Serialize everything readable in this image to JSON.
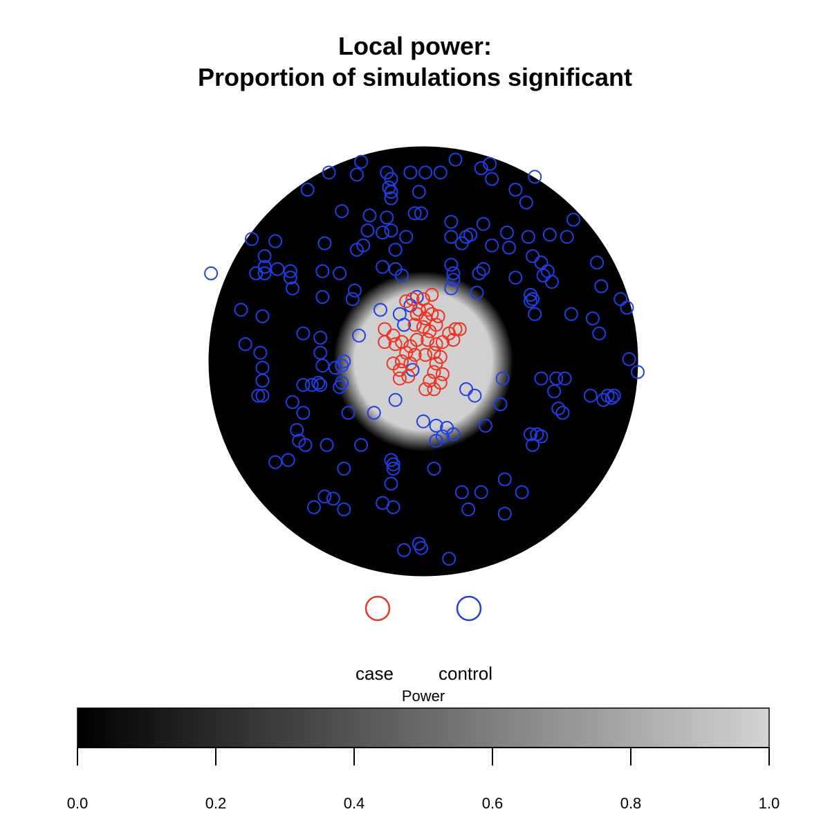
{
  "chart_data": {
    "type": "scatter",
    "title_line1": "Local power:",
    "title_line2": "Proportion of simulations significant",
    "grid": false,
    "background": {
      "description_units": "circular window, radius 1, centered at 0,0",
      "window_radius": 1.0,
      "power_inner_value": 0.85,
      "power_outer_value": 0.0,
      "power_transition_start": 0.32,
      "power_transition_end": 0.42
    },
    "legend": {
      "position": "below plot",
      "entries": [
        {
          "label": "case",
          "color": "#ee3322"
        },
        {
          "label": "control",
          "color": "#1f3fe6"
        }
      ]
    },
    "colorbar": {
      "title": "Power",
      "min": 0.0,
      "max": 1.0,
      "ticks": [
        "0.0",
        "0.2",
        "0.4",
        "0.6",
        "0.8",
        "1.0"
      ],
      "tick_values": [
        0.0,
        0.2,
        0.4,
        0.6,
        0.8,
        1.0
      ],
      "color_low": "#000000",
      "color_high": "#d3d3d3"
    },
    "series": [
      {
        "name": "case",
        "color": "#ee3322",
        "points": [
          [
            -0.08,
            0.28
          ],
          [
            -0.05,
            0.29
          ],
          [
            0.0,
            0.29
          ],
          [
            0.04,
            0.31
          ],
          [
            -0.02,
            0.24
          ],
          [
            0.02,
            0.24
          ],
          [
            -0.03,
            0.22
          ],
          [
            0.01,
            0.2
          ],
          [
            0.04,
            0.22
          ],
          [
            0.07,
            0.21
          ],
          [
            -0.04,
            0.17
          ],
          [
            0.0,
            0.16
          ],
          [
            0.03,
            0.14
          ],
          [
            0.06,
            0.17
          ],
          [
            -0.18,
            0.15
          ],
          [
            -0.14,
            0.12
          ],
          [
            -0.18,
            0.09
          ],
          [
            -0.13,
            0.08
          ],
          [
            -0.1,
            0.09
          ],
          [
            -0.06,
            0.07
          ],
          [
            -0.03,
            0.1
          ],
          [
            0.02,
            0.1
          ],
          [
            0.06,
            0.08
          ],
          [
            0.09,
            0.09
          ],
          [
            0.12,
            0.13
          ],
          [
            0.15,
            0.15
          ],
          [
            0.17,
            0.15
          ],
          [
            0.14,
            0.1
          ],
          [
            -0.08,
            0.04
          ],
          [
            -0.04,
            0.03
          ],
          [
            0.01,
            0.03
          ],
          [
            0.05,
            0.04
          ],
          [
            0.08,
            0.02
          ],
          [
            -0.06,
            -0.01
          ],
          [
            -0.1,
            0.0
          ],
          [
            -0.14,
            -0.01
          ],
          [
            -0.11,
            -0.04
          ],
          [
            0.06,
            -0.01
          ],
          [
            0.05,
            -0.05
          ],
          [
            0.09,
            -0.06
          ],
          [
            -0.11,
            -0.08
          ],
          [
            -0.07,
            -0.07
          ],
          [
            0.03,
            -0.09
          ],
          [
            0.08,
            -0.1
          ],
          [
            0.01,
            -0.13
          ],
          [
            0.05,
            -0.13
          ]
        ]
      },
      {
        "name": "control",
        "color": "#1f3fe6",
        "points": [
          [
            -0.29,
            0.93
          ],
          [
            0.15,
            0.94
          ],
          [
            -0.44,
            0.88
          ],
          [
            -0.31,
            0.87
          ],
          [
            -0.17,
            0.88
          ],
          [
            -0.15,
            0.85
          ],
          [
            -0.06,
            0.88
          ],
          [
            0.01,
            0.88
          ],
          [
            0.08,
            0.88
          ],
          [
            0.27,
            0.9
          ],
          [
            0.31,
            0.92
          ],
          [
            0.32,
            0.85
          ],
          [
            0.52,
            0.86
          ],
          [
            -0.54,
            0.8
          ],
          [
            -0.16,
            0.81
          ],
          [
            -0.15,
            0.79
          ],
          [
            -0.15,
            0.76
          ],
          [
            -0.02,
            0.79
          ],
          [
            0.43,
            0.8
          ],
          [
            0.48,
            0.74
          ],
          [
            -0.38,
            0.7
          ],
          [
            -0.25,
            0.68
          ],
          [
            -0.17,
            0.67
          ],
          [
            -0.04,
            0.69
          ],
          [
            -0.01,
            0.69
          ],
          [
            0.13,
            0.65
          ],
          [
            0.28,
            0.64
          ],
          [
            0.7,
            0.66
          ],
          [
            -0.26,
            0.61
          ],
          [
            -0.19,
            0.6
          ],
          [
            -0.15,
            0.61
          ],
          [
            -0.08,
            0.58
          ],
          [
            0.13,
            0.58
          ],
          [
            0.2,
            0.58
          ],
          [
            0.22,
            0.59
          ],
          [
            0.39,
            0.6
          ],
          [
            0.49,
            0.58
          ],
          [
            0.59,
            0.59
          ],
          [
            0.67,
            0.58
          ],
          [
            -0.8,
            0.57
          ],
          [
            -0.69,
            0.56
          ],
          [
            -0.46,
            0.55
          ],
          [
            -0.28,
            0.54
          ],
          [
            -0.31,
            0.52
          ],
          [
            0.18,
            0.55
          ],
          [
            0.32,
            0.54
          ],
          [
            -0.13,
            0.52
          ],
          [
            0.4,
            0.53
          ],
          [
            -0.74,
            0.49
          ],
          [
            0.51,
            0.49
          ],
          [
            0.55,
            0.46
          ],
          [
            -0.74,
            0.44
          ],
          [
            -0.68,
            0.43
          ],
          [
            0.81,
            0.46
          ],
          [
            -0.39,
            0.41
          ],
          [
            0.58,
            0.42
          ],
          [
            -0.99,
            0.41
          ],
          [
            -0.78,
            0.41
          ],
          [
            -0.74,
            0.41
          ],
          [
            -0.62,
            0.42
          ],
          [
            -0.47,
            0.42
          ],
          [
            -0.19,
            0.44
          ],
          [
            -0.13,
            0.43
          ],
          [
            -0.1,
            0.4
          ],
          [
            0.13,
            0.45
          ],
          [
            0.26,
            0.41
          ],
          [
            0.28,
            0.43
          ],
          [
            0.43,
            0.39
          ],
          [
            0.56,
            0.4
          ],
          [
            0.6,
            0.37
          ],
          [
            0.14,
            0.41
          ],
          [
            0.14,
            0.38
          ],
          [
            -0.62,
            0.39
          ],
          [
            -0.61,
            0.34
          ],
          [
            -0.32,
            0.33
          ],
          [
            0.13,
            0.34
          ],
          [
            0.25,
            0.32
          ],
          [
            0.83,
            0.35
          ],
          [
            -0.47,
            0.3
          ],
          [
            -0.33,
            0.29
          ],
          [
            0.5,
            0.31
          ],
          [
            0.51,
            0.29
          ],
          [
            0.92,
            0.29
          ],
          [
            0.5,
            0.28
          ],
          [
            0.95,
            0.25
          ],
          [
            -0.85,
            0.24
          ],
          [
            -0.75,
            0.21
          ],
          [
            -0.03,
            0.3
          ],
          [
            -0.06,
            0.26
          ],
          [
            -0.11,
            0.22
          ],
          [
            -0.2,
            0.24
          ],
          [
            0.52,
            0.22
          ],
          [
            0.69,
            0.22
          ],
          [
            0.79,
            0.2
          ],
          [
            -0.56,
            0.13
          ],
          [
            -0.48,
            0.11
          ],
          [
            -0.3,
            0.12
          ],
          [
            -0.09,
            0.17
          ],
          [
            0.82,
            0.13
          ],
          [
            -0.83,
            0.08
          ],
          [
            -0.76,
            0.04
          ],
          [
            -0.48,
            0.04
          ],
          [
            -0.37,
            0.0
          ],
          [
            -0.38,
            -0.02
          ],
          [
            -0.41,
            -0.03
          ],
          [
            -0.47,
            -0.02
          ],
          [
            0.96,
            0.01
          ],
          [
            -0.75,
            -0.03
          ],
          [
            -0.05,
            -0.04
          ],
          [
            1.0,
            -0.05
          ],
          [
            0.37,
            -0.08
          ],
          [
            0.55,
            -0.08
          ],
          [
            0.62,
            -0.08
          ],
          [
            0.66,
            -0.08
          ],
          [
            -0.75,
            -0.09
          ],
          [
            -0.56,
            -0.11
          ],
          [
            -0.52,
            -0.11
          ],
          [
            -0.49,
            -0.1
          ],
          [
            -0.48,
            -0.11
          ],
          [
            -0.38,
            -0.1
          ],
          [
            -0.39,
            -0.12
          ],
          [
            0.2,
            -0.13
          ],
          [
            0.61,
            -0.14
          ],
          [
            -0.77,
            -0.16
          ],
          [
            -0.75,
            -0.16
          ],
          [
            0.24,
            -0.16
          ],
          [
            0.78,
            -0.16
          ],
          [
            0.86,
            -0.16
          ],
          [
            0.88,
            -0.17
          ],
          [
            0.89,
            -0.16
          ],
          [
            0.84,
            -0.18
          ],
          [
            -0.61,
            -0.19
          ],
          [
            -0.13,
            -0.18
          ],
          [
            0.36,
            -0.2
          ],
          [
            0.63,
            -0.22
          ],
          [
            0.65,
            -0.24
          ],
          [
            -0.56,
            -0.24
          ],
          [
            -0.35,
            -0.24
          ],
          [
            -0.23,
            -0.24
          ],
          [
            0.0,
            -0.28
          ],
          [
            0.06,
            -0.3
          ],
          [
            0.11,
            -0.31
          ],
          [
            0.29,
            -0.3
          ],
          [
            -0.59,
            -0.32
          ],
          [
            0.14,
            -0.34
          ],
          [
            0.09,
            -0.35
          ],
          [
            0.5,
            -0.34
          ],
          [
            0.53,
            -0.34
          ],
          [
            0.55,
            -0.35
          ],
          [
            -0.58,
            -0.37
          ],
          [
            -0.55,
            -0.39
          ],
          [
            -0.45,
            -0.39
          ],
          [
            -0.29,
            -0.39
          ],
          [
            0.06,
            -0.37
          ],
          [
            0.51,
            -0.39
          ],
          [
            -0.63,
            -0.46
          ],
          [
            -0.69,
            -0.47
          ],
          [
            -0.15,
            -0.46
          ],
          [
            -0.14,
            -0.48
          ],
          [
            -0.14,
            -0.5
          ],
          [
            -0.37,
            -0.5
          ],
          [
            0.05,
            -0.5
          ],
          [
            0.38,
            -0.55
          ],
          [
            -0.15,
            -0.57
          ],
          [
            0.18,
            -0.61
          ],
          [
            0.27,
            -0.61
          ],
          [
            0.46,
            -0.61
          ],
          [
            -0.46,
            -0.63
          ],
          [
            -0.42,
            -0.64
          ],
          [
            -0.19,
            -0.66
          ],
          [
            -0.14,
            -0.68
          ],
          [
            -0.51,
            -0.68
          ],
          [
            -0.37,
            -0.69
          ],
          [
            0.21,
            -0.69
          ],
          [
            0.38,
            -0.71
          ],
          [
            -0.09,
            -0.88
          ],
          [
            -0.02,
            -0.85
          ],
          [
            -0.01,
            -0.87
          ],
          [
            0.12,
            -0.92
          ]
        ]
      }
    ]
  }
}
